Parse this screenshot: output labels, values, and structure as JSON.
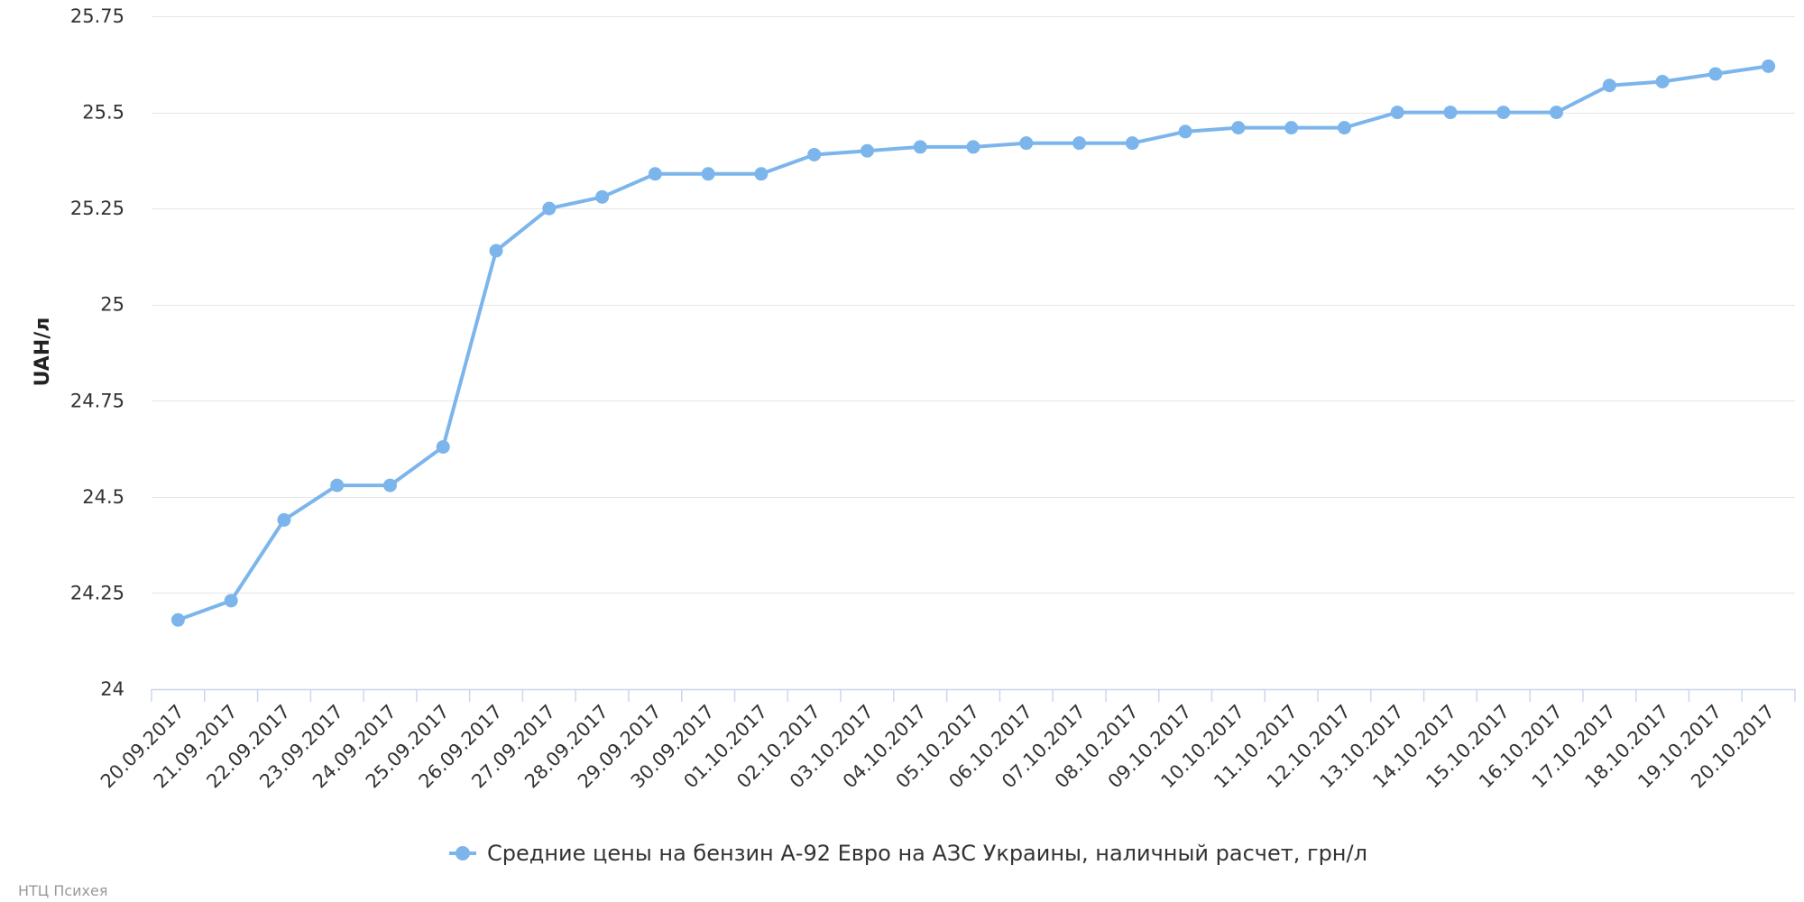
{
  "chart_data": {
    "type": "line",
    "title": "",
    "xlabel": "",
    "ylabel": "UAH/л",
    "ylim": [
      24,
      25.75
    ],
    "yticks": [
      24,
      24.25,
      24.5,
      24.75,
      25,
      25.25,
      25.5,
      25.75
    ],
    "ytick_labels": [
      "24",
      "24.25",
      "24.5",
      "24.75",
      "25",
      "25.25",
      "25.5",
      "25.75"
    ],
    "grid": true,
    "legend_position": "bottom-center",
    "credit": "НТЦ Психея",
    "categories": [
      "20.09.2017",
      "21.09.2017",
      "22.09.2017",
      "23.09.2017",
      "24.09.2017",
      "25.09.2017",
      "26.09.2017",
      "27.09.2017",
      "28.09.2017",
      "29.09.2017",
      "30.09.2017",
      "01.10.2017",
      "02.10.2017",
      "03.10.2017",
      "04.10.2017",
      "05.10.2017",
      "06.10.2017",
      "07.10.2017",
      "08.10.2017",
      "09.10.2017",
      "10.10.2017",
      "11.10.2017",
      "12.10.2017",
      "13.10.2017",
      "14.10.2017",
      "15.10.2017",
      "16.10.2017",
      "17.10.2017",
      "18.10.2017",
      "19.10.2017",
      "20.10.2017"
    ],
    "series": [
      {
        "name": "Средние цены на бензин А-92 Евро на АЗС Украины, наличный расчет, грн/л",
        "color": "#7cb5ec",
        "values": [
          24.18,
          24.23,
          24.44,
          24.53,
          24.53,
          24.63,
          25.14,
          25.25,
          25.28,
          25.34,
          25.34,
          25.34,
          25.39,
          25.4,
          25.41,
          25.41,
          25.42,
          25.42,
          25.42,
          25.45,
          25.46,
          25.46,
          25.46,
          25.5,
          25.5,
          25.5,
          25.5,
          25.57,
          25.58,
          25.6,
          25.62
        ]
      }
    ]
  }
}
